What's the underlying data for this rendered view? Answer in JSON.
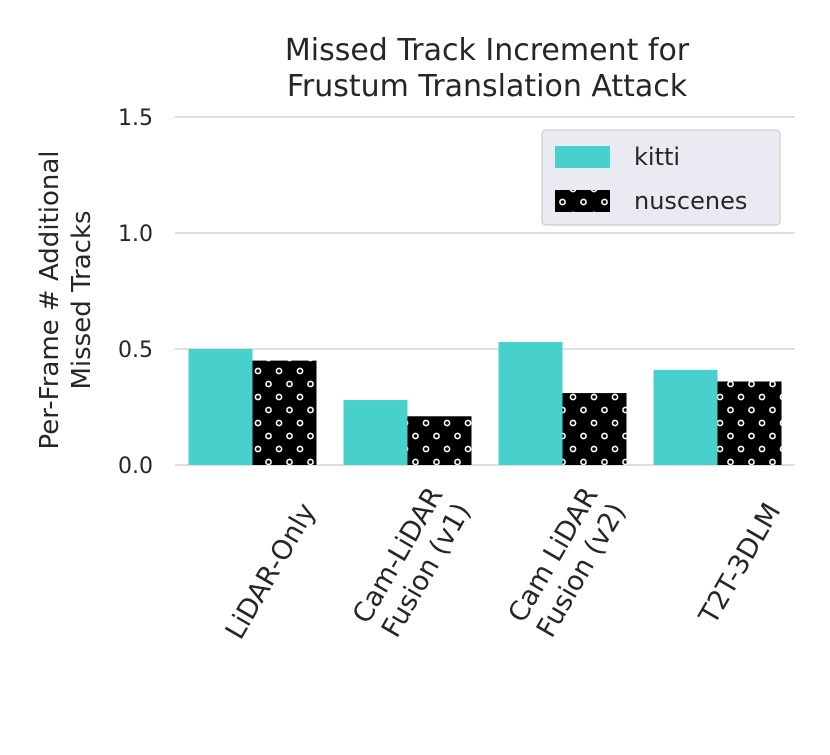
{
  "chart_data": {
    "type": "bar",
    "title": [
      "Missed Track Increment for",
      "Frustum Translation Attack"
    ],
    "ylabel": [
      "Per-Frame # Additional",
      "Missed Tracks"
    ],
    "categories": [
      [
        "LiDAR-Only"
      ],
      [
        "Cam-LiDAR",
        "Fusion (v1)"
      ],
      [
        "Cam LiDAR",
        "Fusion (v2)"
      ],
      [
        "T2T-3DLM"
      ]
    ],
    "series": [
      {
        "name": "kitti",
        "color": "#48d1cc",
        "values": [
          0.5,
          0.28,
          0.53,
          0.41
        ]
      },
      {
        "name": "nuscenes",
        "color": "#008080",
        "hatch": "o",
        "values": [
          0.45,
          0.21,
          0.31,
          0.36
        ]
      }
    ],
    "ylim": [
      0,
      1.5
    ],
    "yticks": [
      {
        "value": 0,
        "label": "0.0"
      },
      {
        "value": 0.5,
        "label": "0.5"
      },
      {
        "value": 1,
        "label": "1.0"
      },
      {
        "value": 1.5,
        "label": "1.5"
      }
    ],
    "grid": true,
    "legend": "upper right"
  }
}
